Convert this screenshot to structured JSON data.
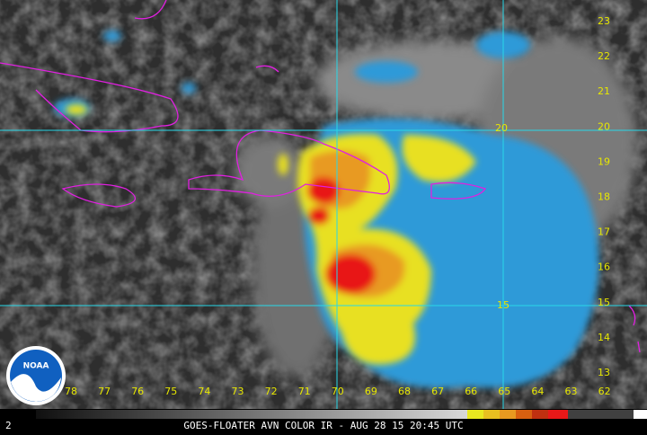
{
  "map": {
    "longitude_labels": [
      "78",
      "77",
      "76",
      "75",
      "74",
      "73",
      "72",
      "71",
      "70",
      "69",
      "68",
      "67",
      "66",
      "65",
      "64",
      "63",
      "62"
    ],
    "latitude_labels": [
      "23",
      "22",
      "21",
      "20",
      "19",
      "18",
      "17",
      "16",
      "15",
      "14",
      "13"
    ],
    "grid_labels": [
      "20",
      "15"
    ],
    "logo": "NOAA",
    "frame_number": "2",
    "caption": "GOES-FLOATER AVN COLOR IR - AUG 28 15 20:45 UTC"
  }
}
